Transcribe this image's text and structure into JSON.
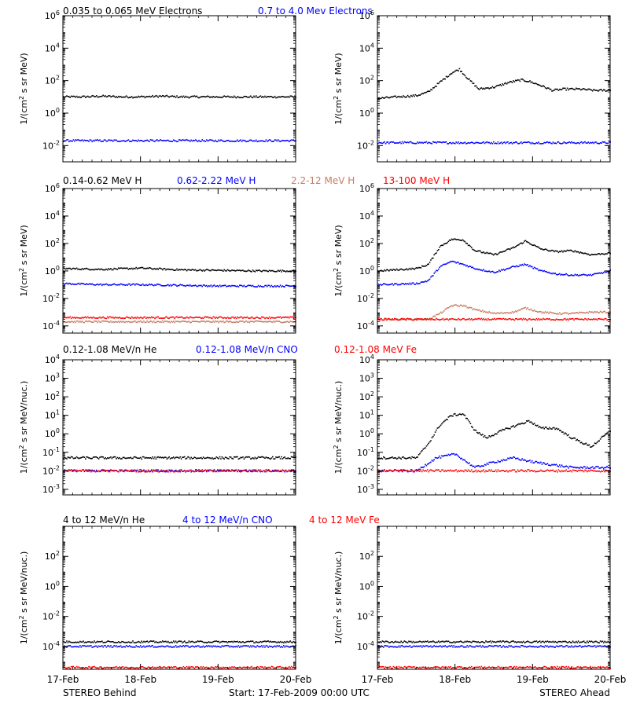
{
  "colors": {
    "black": "#000000",
    "blue": "#0000ff",
    "tan": "#c77d62",
    "red": "#ff0000"
  },
  "footer": {
    "left": "STEREO Behind",
    "center": "Start: 17-Feb-2009 00:00 UTC",
    "right": "STEREO Ahead"
  },
  "rows": [
    {
      "legend": [
        {
          "text": "0.035 to 0.065 MeV Electrons",
          "color": "black"
        },
        {
          "text": "0.7 to 4.0 Mev Electrons",
          "color": "blue"
        }
      ]
    },
    {
      "legend": [
        {
          "text": "0.14-0.62 MeV H",
          "color": "black"
        },
        {
          "text": "0.62-2.22 MeV H",
          "color": "blue"
        },
        {
          "text": "2.2-12 MeV H",
          "color": "tan"
        },
        {
          "text": "13-100 MeV H",
          "color": "red"
        }
      ]
    },
    {
      "legend": [
        {
          "text": "0.12-1.08 MeV/n He",
          "color": "black"
        },
        {
          "text": "0.12-1.08 MeV/n CNO",
          "color": "blue"
        },
        {
          "text": "0.12-1.08 MeV Fe",
          "color": "red"
        }
      ]
    },
    {
      "legend": [
        {
          "text": "4 to 12 MeV/n He",
          "color": "black"
        },
        {
          "text": "4 to 12 MeV/n CNO",
          "color": "blue"
        },
        {
          "text": "4 to 12 MeV Fe",
          "color": "red"
        }
      ]
    }
  ],
  "chart_data": [
    {
      "type": "scatter",
      "ylog": true,
      "ylabel": "1/(cm2 s sr MeV)",
      "ylim": [
        0.001,
        1000000
      ],
      "yticks": [
        {
          "v": 0.01,
          "e": "-2"
        },
        {
          "v": 1,
          "e": "0"
        },
        {
          "v": 100,
          "e": "2"
        },
        {
          "v": 10000,
          "e": "4"
        },
        {
          "v": 1000000,
          "e": "6"
        }
      ],
      "xlim": [
        0,
        3
      ],
      "xticks": [
        "17-Feb",
        "18-Feb",
        "19-Feb",
        "20-Feb"
      ],
      "series": [
        {
          "name": "0.035 to 0.065 MeV Electrons",
          "color": "black",
          "x": [
            0,
            0.25,
            0.5,
            0.75,
            1,
            1.25,
            1.5,
            1.75,
            2,
            2.25,
            2.5,
            2.75,
            3
          ],
          "y": [
            10,
            10,
            11,
            10,
            10,
            11,
            10,
            10,
            10,
            10,
            10,
            10,
            10
          ]
        },
        {
          "name": "0.7 to 4.0 Mev Electrons",
          "color": "blue",
          "x": [
            0,
            0.25,
            0.5,
            0.75,
            1,
            1.25,
            1.5,
            1.75,
            2,
            2.25,
            2.5,
            2.75,
            3
          ],
          "y": [
            0.02,
            0.02,
            0.02,
            0.02,
            0.02,
            0.02,
            0.02,
            0.02,
            0.02,
            0.02,
            0.02,
            0.02,
            0.02
          ]
        }
      ]
    },
    {
      "type": "scatter",
      "ylog": true,
      "ylabel": "1/(cm2 s sr MeV)",
      "ylim": [
        0.001,
        1000000
      ],
      "yticks": [
        {
          "v": 0.01,
          "e": "-2"
        },
        {
          "v": 1,
          "e": "0"
        },
        {
          "v": 100,
          "e": "2"
        },
        {
          "v": 10000,
          "e": "4"
        },
        {
          "v": 1000000,
          "e": "6"
        }
      ],
      "xlim": [
        0,
        3
      ],
      "xticks": [
        "17-Feb",
        "18-Feb",
        "19-Feb",
        "20-Feb"
      ],
      "series": [
        {
          "name": "0.035 to 0.065 MeV Electrons",
          "color": "black",
          "x": [
            0,
            0.25,
            0.5,
            0.65,
            0.8,
            0.95,
            1.05,
            1.15,
            1.3,
            1.5,
            1.7,
            1.85,
            1.95,
            2.1,
            2.25,
            2.4,
            2.6,
            2.8,
            3
          ],
          "y": [
            8,
            10,
            12,
            20,
            80,
            300,
            500,
            150,
            30,
            40,
            80,
            110,
            90,
            50,
            25,
            30,
            30,
            25,
            25
          ]
        },
        {
          "name": "0.7 to 4.0 Mev Electrons",
          "color": "blue",
          "x": [
            0,
            0.25,
            0.5,
            0.75,
            1,
            1.25,
            1.5,
            1.75,
            2,
            2.25,
            2.5,
            2.75,
            3
          ],
          "y": [
            0.015,
            0.015,
            0.015,
            0.015,
            0.015,
            0.015,
            0.015,
            0.015,
            0.015,
            0.015,
            0.015,
            0.015,
            0.015
          ]
        }
      ]
    },
    {
      "type": "scatter",
      "ylog": true,
      "ylabel": "1/(cm2 s sr MeV)",
      "ylim": [
        3e-05,
        1000000
      ],
      "yticks": [
        {
          "v": 0.0001,
          "e": "-4"
        },
        {
          "v": 0.01,
          "e": "-2"
        },
        {
          "v": 1,
          "e": "0"
        },
        {
          "v": 100,
          "e": "2"
        },
        {
          "v": 10000,
          "e": "4"
        },
        {
          "v": 1000000,
          "e": "6"
        }
      ],
      "xlim": [
        0,
        3
      ],
      "xticks": [
        "17-Feb",
        "18-Feb",
        "19-Feb",
        "20-Feb"
      ],
      "series": [
        {
          "name": "0.14-0.62 MeV H",
          "color": "black",
          "x": [
            0,
            0.5,
            1,
            1.5,
            2,
            2.5,
            3
          ],
          "y": [
            1.5,
            1.3,
            1.6,
            1.2,
            1.1,
            1.0,
            1.0
          ]
        },
        {
          "name": "0.62-2.22 MeV H",
          "color": "blue",
          "x": [
            0,
            0.5,
            1,
            1.5,
            2,
            2.5,
            3
          ],
          "y": [
            0.12,
            0.1,
            0.1,
            0.09,
            0.08,
            0.08,
            0.08
          ]
        },
        {
          "name": "2.2-12 MeV H",
          "color": "tan",
          "x": [
            0,
            0.5,
            1,
            1.5,
            2,
            2.5,
            3
          ],
          "y": [
            0.0002,
            0.0002,
            0.0002,
            0.0002,
            0.0002,
            0.0002,
            0.0002
          ]
        },
        {
          "name": "13-100 MeV H",
          "color": "red",
          "x": [
            0,
            0.5,
            1,
            1.5,
            2,
            2.5,
            3
          ],
          "y": [
            0.0004,
            0.0004,
            0.0004,
            0.0004,
            0.0004,
            0.0004,
            0.0004
          ]
        }
      ]
    },
    {
      "type": "scatter",
      "ylog": true,
      "ylabel": "1/(cm2 s sr MeV)",
      "ylim": [
        3e-05,
        1000000
      ],
      "yticks": [
        {
          "v": 0.0001,
          "e": "-4"
        },
        {
          "v": 0.01,
          "e": "-2"
        },
        {
          "v": 1,
          "e": "0"
        },
        {
          "v": 100,
          "e": "2"
        },
        {
          "v": 10000,
          "e": "4"
        },
        {
          "v": 1000000,
          "e": "6"
        }
      ],
      "xlim": [
        0,
        3
      ],
      "xticks": [
        "17-Feb",
        "18-Feb",
        "19-Feb",
        "20-Feb"
      ],
      "series": [
        {
          "name": "0.14-0.62 MeV H",
          "color": "black",
          "x": [
            0,
            0.5,
            0.65,
            0.8,
            0.95,
            1.1,
            1.25,
            1.5,
            1.75,
            1.9,
            2.1,
            2.3,
            2.5,
            2.75,
            3
          ],
          "y": [
            1,
            1.5,
            3,
            60,
            200,
            180,
            30,
            15,
            50,
            150,
            40,
            25,
            30,
            15,
            20
          ]
        },
        {
          "name": "0.62-2.22 MeV H",
          "color": "blue",
          "x": [
            0,
            0.5,
            0.65,
            0.8,
            0.95,
            1.1,
            1.25,
            1.5,
            1.75,
            1.9,
            2.1,
            2.3,
            2.5,
            2.75,
            3
          ],
          "y": [
            0.1,
            0.12,
            0.2,
            2,
            5,
            3,
            1.5,
            0.8,
            2,
            3,
            1,
            0.6,
            0.5,
            0.5,
            1
          ]
        },
        {
          "name": "2.2-12 MeV H",
          "color": "tan",
          "x": [
            0,
            0.5,
            0.65,
            0.8,
            0.95,
            1.1,
            1.25,
            1.5,
            1.75,
            1.9,
            2.1,
            2.3,
            2.5,
            2.75,
            3
          ],
          "y": [
            0.0003,
            0.0003,
            0.0003,
            0.0008,
            0.003,
            0.003,
            0.0015,
            0.0008,
            0.001,
            0.002,
            0.001,
            0.0008,
            0.0008,
            0.001,
            0.001
          ]
        },
        {
          "name": "13-100 MeV H",
          "color": "red",
          "x": [
            0,
            0.5,
            1,
            1.5,
            2,
            2.5,
            3
          ],
          "y": [
            0.0003,
            0.0003,
            0.0003,
            0.0003,
            0.0003,
            0.0003,
            0.0003
          ]
        }
      ]
    },
    {
      "type": "scatter",
      "ylog": true,
      "ylabel": "1/(cm2 s sr MeV/nuc.)",
      "ylim": [
        0.0005,
        10000
      ],
      "yticks": [
        {
          "v": 0.001,
          "e": "-3"
        },
        {
          "v": 0.01,
          "e": "-2"
        },
        {
          "v": 0.1,
          "e": "-1"
        },
        {
          "v": 1,
          "e": "0"
        },
        {
          "v": 10,
          "e": "1"
        },
        {
          "v": 100,
          "e": "2"
        },
        {
          "v": 1000,
          "e": "3"
        },
        {
          "v": 10000,
          "e": "4"
        }
      ],
      "xlim": [
        0,
        3
      ],
      "xticks": [
        "17-Feb",
        "18-Feb",
        "19-Feb",
        "20-Feb"
      ],
      "series": [
        {
          "name": "0.12-1.08 MeV/n He",
          "color": "black",
          "x": [
            0,
            0.5,
            1,
            1.5,
            2,
            2.5,
            3
          ],
          "y": [
            0.05,
            0.05,
            0.05,
            0.05,
            0.05,
            0.05,
            0.05
          ]
        },
        {
          "name": "0.12-1.08 MeV/n CNO",
          "color": "blue",
          "x": [
            0,
            0.5,
            1,
            1.5,
            2,
            2.5,
            3
          ],
          "y": [
            0.01,
            0.01,
            0.01,
            0.01,
            0.01,
            0.01,
            0.01
          ]
        },
        {
          "name": "0.12-1.08 MeV Fe",
          "color": "red",
          "x": [
            0,
            0.5,
            1,
            1.5,
            2,
            2.5,
            3
          ],
          "y": [
            0.01,
            0.01,
            0.01,
            0.01,
            0.01,
            0.01,
            0.01
          ]
        }
      ]
    },
    {
      "type": "scatter",
      "ylog": true,
      "ylabel": "1/(cm2 s sr MeV/nuc.)",
      "ylim": [
        0.0005,
        10000
      ],
      "yticks": [
        {
          "v": 0.001,
          "e": "-3"
        },
        {
          "v": 0.01,
          "e": "-2"
        },
        {
          "v": 0.1,
          "e": "-1"
        },
        {
          "v": 1,
          "e": "0"
        },
        {
          "v": 10,
          "e": "1"
        },
        {
          "v": 100,
          "e": "2"
        },
        {
          "v": 1000,
          "e": "3"
        },
        {
          "v": 10000,
          "e": "4"
        }
      ],
      "xlim": [
        0,
        3
      ],
      "xticks": [
        "17-Feb",
        "18-Feb",
        "19-Feb",
        "20-Feb"
      ],
      "series": [
        {
          "name": "0.12-1.08 MeV/n He",
          "color": "black",
          "x": [
            0,
            0.5,
            0.65,
            0.8,
            0.95,
            1.1,
            1.25,
            1.4,
            1.6,
            1.8,
            1.95,
            2.1,
            2.3,
            2.5,
            2.75,
            3
          ],
          "y": [
            0.05,
            0.05,
            0.3,
            3,
            10,
            12,
            1.5,
            0.6,
            1.5,
            3,
            5,
            2,
            2,
            0.6,
            0.2,
            1.5
          ]
        },
        {
          "name": "0.12-1.08 MeV/n CNO",
          "color": "blue",
          "x": [
            0,
            0.5,
            0.75,
            1,
            1.25,
            1.5,
            1.75,
            2,
            2.5,
            3
          ],
          "y": [
            0.01,
            0.01,
            0.05,
            0.08,
            0.015,
            0.03,
            0.05,
            0.03,
            0.015,
            0.015
          ]
        },
        {
          "name": "0.12-1.08 MeV Fe",
          "color": "red",
          "x": [
            0,
            0.5,
            1,
            1.5,
            2,
            2.5,
            3
          ],
          "y": [
            0.01,
            0.01,
            0.01,
            0.01,
            0.01,
            0.01,
            0.01
          ]
        }
      ]
    },
    {
      "type": "scatter",
      "ylog": true,
      "ylabel": "1/(cm2 s sr MeV/nuc.)",
      "ylim": [
        3e-06,
        10000
      ],
      "yticks": [
        {
          "v": 0.0001,
          "e": "-4"
        },
        {
          "v": 0.01,
          "e": "-2"
        },
        {
          "v": 1,
          "e": "0"
        },
        {
          "v": 100,
          "e": "2"
        }
      ],
      "xlim": [
        0,
        3
      ],
      "xticks": [
        "17-Feb",
        "18-Feb",
        "19-Feb",
        "20-Feb"
      ],
      "series": [
        {
          "name": "4 to 12 MeV/n He",
          "color": "black",
          "x": [
            0,
            0.5,
            1,
            1.5,
            2,
            2.5,
            3
          ],
          "y": [
            0.0002,
            0.0002,
            0.0002,
            0.0002,
            0.0002,
            0.0002,
            0.0002
          ]
        },
        {
          "name": "4 to 12 MeV/n CNO",
          "color": "blue",
          "x": [
            0,
            0.5,
            1,
            1.5,
            2,
            2.5,
            3
          ],
          "y": [
            0.0001,
            0.0001,
            0.0001,
            0.0001,
            0.0001,
            0.0001,
            0.0001
          ]
        },
        {
          "name": "4 to 12 MeV Fe",
          "color": "red",
          "x": [
            0,
            0.5,
            1,
            1.5,
            2,
            2.5,
            3
          ],
          "y": [
            4e-06,
            4e-06,
            4e-06,
            4e-06,
            4e-06,
            4e-06,
            4e-06
          ]
        }
      ]
    },
    {
      "type": "scatter",
      "ylog": true,
      "ylabel": "1/(cm2 s sr MeV/nuc.)",
      "ylim": [
        3e-06,
        10000
      ],
      "yticks": [
        {
          "v": 0.0001,
          "e": "-4"
        },
        {
          "v": 0.01,
          "e": "-2"
        },
        {
          "v": 1,
          "e": "0"
        },
        {
          "v": 100,
          "e": "2"
        }
      ],
      "xlim": [
        0,
        3
      ],
      "xticks": [
        "17-Feb",
        "18-Feb",
        "19-Feb",
        "20-Feb"
      ],
      "series": [
        {
          "name": "4 to 12 MeV/n He",
          "color": "black",
          "x": [
            0,
            0.5,
            1,
            1.5,
            2,
            2.5,
            3
          ],
          "y": [
            0.0002,
            0.0002,
            0.0002,
            0.0002,
            0.0002,
            0.0002,
            0.0002
          ]
        },
        {
          "name": "4 to 12 MeV/n CNO",
          "color": "blue",
          "x": [
            0,
            0.5,
            1,
            1.5,
            2,
            2.5,
            3
          ],
          "y": [
            0.0001,
            0.0001,
            0.0001,
            0.0001,
            0.0001,
            0.0001,
            0.0001
          ]
        },
        {
          "name": "4 to 12 MeV Fe",
          "color": "red",
          "x": [
            0,
            0.5,
            1,
            1.5,
            2,
            2.5,
            3
          ],
          "y": [
            4e-06,
            4e-06,
            4e-06,
            4e-06,
            4e-06,
            4e-06,
            4e-06
          ]
        }
      ]
    }
  ]
}
